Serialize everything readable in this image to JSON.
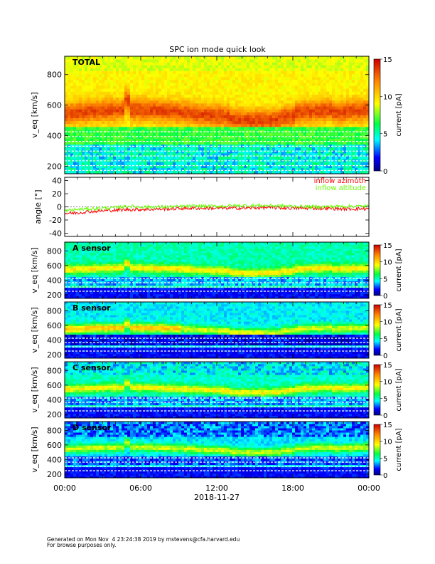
{
  "title": "SPC ion mode quick look",
  "x_axis": {
    "tick_labels": [
      "00:00",
      "06:00",
      "12:00",
      "18:00",
      "00:00"
    ],
    "date_label": "2018-11-27"
  },
  "colorbar": {
    "label": "current [pA]",
    "ticks": [
      "0",
      "5",
      "10",
      "15"
    ]
  },
  "footer": {
    "line1": "Generated on Mon Nov  4 23:24:38 2019 by mstevens@cfa.harvard.edu",
    "line2": "For browse purposes only."
  },
  "chart_data": [
    {
      "type": "heatmap",
      "panel_label": "TOTAL",
      "ylabel": "v_eq [km/s]",
      "yticks": [
        "200",
        "400",
        "600",
        "800"
      ],
      "ylim": [
        150,
        920
      ],
      "xlim_hours": [
        0,
        24
      ],
      "zlim_pA": [
        0,
        15
      ],
      "ridge_velocity_kms": [
        {
          "x_hour": 0,
          "y": 540
        },
        {
          "x_hour": 3,
          "y": 560
        },
        {
          "x_hour": 5,
          "y": 600
        },
        {
          "x_hour": 8,
          "y": 560
        },
        {
          "x_hour": 12,
          "y": 540
        },
        {
          "x_hour": 15,
          "y": 520
        },
        {
          "x_hour": 18,
          "y": 560
        },
        {
          "x_hour": 24,
          "y": 520
        }
      ]
    },
    {
      "type": "line",
      "ylabel": "angle [°]",
      "yticks": [
        "-40",
        "-20",
        "0",
        "20",
        "40"
      ],
      "ylim": [
        -45,
        45
      ],
      "xlim_hours": [
        0,
        24
      ],
      "series": [
        {
          "name": "inflow azimuth",
          "color": "#ff0000",
          "x": [
            0,
            1,
            2,
            3,
            4,
            5,
            6,
            8,
            10,
            12,
            14,
            16,
            18,
            20,
            22,
            24
          ],
          "y": [
            -10,
            -9,
            -7,
            -6,
            -5,
            -4,
            -4,
            -3,
            -2,
            -2,
            -2,
            -1,
            -2,
            -2,
            -3,
            -3
          ]
        },
        {
          "name": "inflow altitude",
          "color": "#66ff00",
          "x": [
            0,
            1,
            2,
            3,
            4,
            5,
            6,
            8,
            10,
            12,
            14,
            16,
            18,
            20,
            22,
            24
          ],
          "y": [
            -6,
            -4,
            -3,
            -2,
            -1,
            1,
            0,
            0,
            1,
            1,
            2,
            2,
            1,
            0,
            1,
            1
          ]
        }
      ]
    },
    {
      "type": "heatmap",
      "panel_label": "A sensor",
      "ylabel": "v_eq [km/s]",
      "yticks": [
        "200",
        "400",
        "600",
        "800"
      ],
      "ylim": [
        150,
        920
      ],
      "xlim_hours": [
        0,
        24
      ],
      "zlim_pA": [
        0,
        15
      ]
    },
    {
      "type": "heatmap",
      "panel_label": "B sensor",
      "ylabel": "v_eq [km/s]",
      "yticks": [
        "200",
        "400",
        "600",
        "800"
      ],
      "ylim": [
        150,
        920
      ],
      "xlim_hours": [
        0,
        24
      ],
      "zlim_pA": [
        0,
        15
      ]
    },
    {
      "type": "heatmap",
      "panel_label": "C sensor",
      "ylabel": "v_eq [km/s]",
      "yticks": [
        "200",
        "400",
        "600",
        "800"
      ],
      "ylim": [
        150,
        920
      ],
      "xlim_hours": [
        0,
        24
      ],
      "zlim_pA": [
        0,
        15
      ]
    },
    {
      "type": "heatmap",
      "panel_label": "D sensor",
      "ylabel": "v_eq [km/s]",
      "yticks": [
        "200",
        "400",
        "600",
        "800"
      ],
      "ylim": [
        150,
        920
      ],
      "xlim_hours": [
        0,
        24
      ],
      "zlim_pA": [
        0,
        15
      ]
    }
  ]
}
